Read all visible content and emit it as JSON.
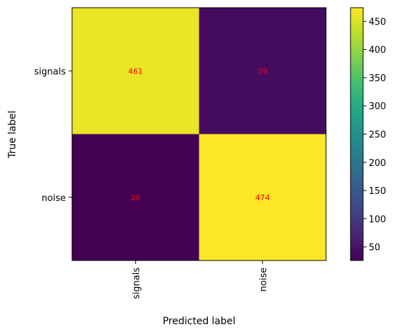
{
  "chart_data": {
    "type": "heatmap",
    "title": "",
    "xlabel": "Predicted label",
    "ylabel": "True label",
    "x_categories": [
      "signals",
      "noise"
    ],
    "y_categories": [
      "signals",
      "noise"
    ],
    "values": [
      [
        461,
        39
      ],
      [
        26,
        474
      ]
    ],
    "colormap": "viridis",
    "color_range": [
      26,
      474
    ],
    "colorbar_ticks": [
      50,
      100,
      150,
      200,
      250,
      300,
      350,
      400,
      450
    ],
    "cell_label_color": "#ff0000",
    "x_tick_rotation": "vertical",
    "grid": false
  }
}
